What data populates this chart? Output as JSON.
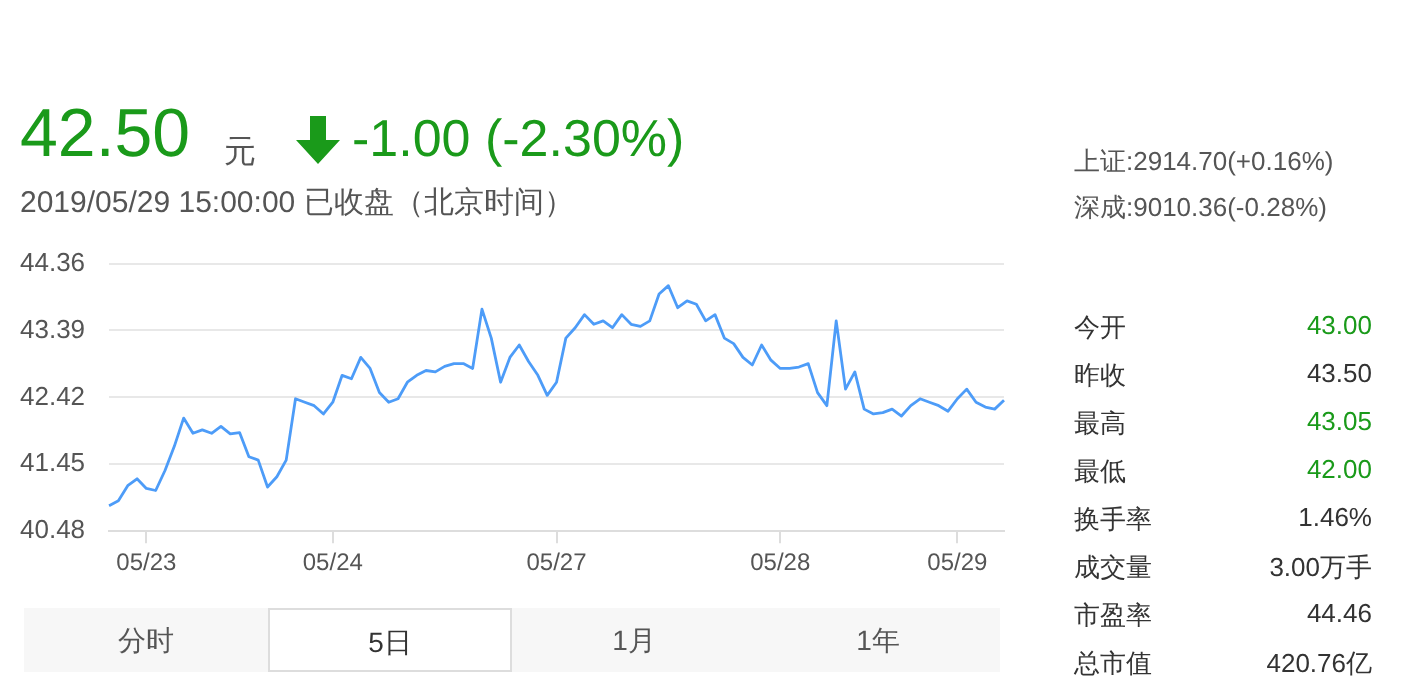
{
  "chart_data": {
    "type": "line",
    "categories": [
      null,
      null,
      null,
      null,
      "05/23",
      null,
      null,
      null,
      null,
      null,
      null,
      null,
      null,
      null,
      null,
      null,
      null,
      null,
      null,
      null,
      null,
      null,
      null,
      null,
      "05/24",
      null,
      null,
      null,
      null,
      null,
      null,
      null,
      null,
      null,
      null,
      null,
      null,
      null,
      null,
      null,
      null,
      null,
      null,
      null,
      null,
      null,
      null,
      null,
      "05/27",
      null,
      null,
      null,
      null,
      null,
      null,
      null,
      null,
      null,
      null,
      null,
      null,
      null,
      null,
      null,
      null,
      null,
      null,
      null,
      null,
      null,
      null,
      null,
      "05/28",
      null,
      null,
      null,
      null,
      null,
      null,
      null,
      null,
      null,
      null,
      null,
      null,
      null,
      null,
      null,
      null,
      null,
      null,
      "05/29",
      null,
      null,
      null,
      null,
      null
    ],
    "series": [
      {
        "color": "#4d9cf8",
        "values": [
          40.85,
          40.92,
          41.14,
          41.24,
          41.1,
          41.07,
          41.36,
          41.71,
          42.12,
          41.9,
          41.95,
          41.9,
          42.0,
          41.89,
          41.91,
          41.56,
          41.51,
          41.12,
          41.27,
          41.51,
          42.4,
          42.35,
          42.3,
          42.18,
          42.35,
          42.74,
          42.69,
          43.0,
          42.84,
          42.49,
          42.35,
          42.4,
          42.64,
          42.74,
          42.81,
          42.79,
          42.87,
          42.91,
          42.91,
          42.84,
          43.7,
          43.28,
          42.64,
          43.0,
          43.18,
          42.94,
          42.74,
          42.45,
          42.64,
          43.28,
          43.43,
          43.62,
          43.48,
          43.53,
          43.43,
          43.62,
          43.48,
          43.45,
          43.53,
          43.92,
          44.04,
          43.72,
          43.82,
          43.77,
          43.53,
          43.62,
          43.28,
          43.2,
          43.0,
          42.89,
          43.18,
          42.96,
          42.84,
          42.84,
          42.86,
          42.91,
          42.49,
          42.3,
          43.53,
          42.54,
          42.79,
          42.25,
          42.18,
          42.2,
          42.25,
          42.15,
          42.3,
          42.4,
          42.35,
          42.3,
          42.22,
          42.4,
          42.54,
          42.35,
          42.28,
          42.25,
          42.38
        ]
      }
    ],
    "ylim": [
      40.48,
      44.36
    ],
    "yticks": [
      40.48,
      41.45,
      42.42,
      43.39,
      44.36
    ],
    "grid": "y",
    "legend": false,
    "marker": "none",
    "line_style": "solid",
    "annotations": [
      "42.50",
      "元",
      "-1.00 (-2.30%)",
      "2019/05/29 15:00:00 已收盘（北京时间）",
      "上证:2914.70(+0.16%)",
      "深成:9010.36(-0.28%)",
      "今开",
      "43.00",
      "昨收",
      "43.50",
      "最高",
      "43.05",
      "最低",
      "42.00",
      "换手率",
      "1.46%",
      "成交量",
      "3.00万手",
      "市盈率",
      "44.46",
      "总市值",
      "420.76亿",
      "分时",
      "5日",
      "1月",
      "1年"
    ]
  }
}
